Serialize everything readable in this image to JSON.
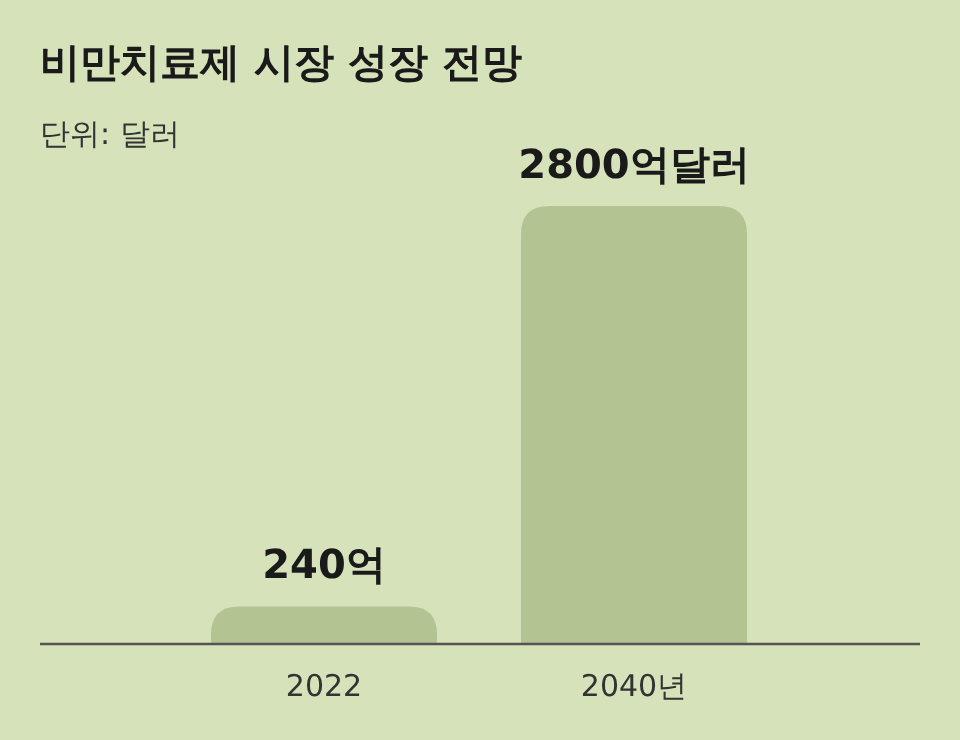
{
  "chart_data": {
    "type": "bar",
    "title": "비만치료제 시장 성장 전망",
    "subtitle": "단위: 달러",
    "categories": [
      "2022",
      "2040년"
    ],
    "values": [
      240,
      2800
    ],
    "value_labels": [
      "240억",
      "2800억달러"
    ],
    "color": "#b3c492"
  }
}
